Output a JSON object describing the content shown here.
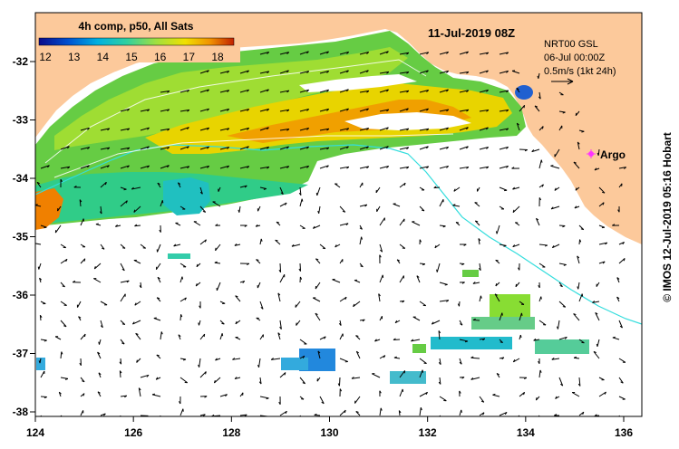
{
  "title_box": {
    "product": "4h comp, p50, All Sats",
    "scale_ticks": [
      "12",
      "13",
      "14",
      "15",
      "16",
      "17",
      "18"
    ]
  },
  "datetime": "11-Jul-2019 08Z",
  "legend": {
    "model": "NRT00 GSL",
    "model_date": "06-Jul 00:00Z",
    "vector_scale": "0.5m/s (1kt 24h)"
  },
  "argo_label": "Argo",
  "credit": "© IMOS 12-Jul-2019 05:16 Hobart",
  "axes": {
    "x_ticks": [
      "124",
      "126",
      "128",
      "130",
      "132",
      "134",
      "136"
    ],
    "y_ticks": [
      "-32",
      "-33",
      "-34",
      "-35",
      "-36",
      "-37",
      "-38"
    ]
  },
  "colors": {
    "land": "#fcc99b",
    "ocean": "#ffffff",
    "colorbar": [
      "#0a0a8a",
      "#0050d0",
      "#00b0e0",
      "#30d0a0",
      "#a0e040",
      "#f0e000",
      "#f09000",
      "#c02000"
    ]
  }
}
